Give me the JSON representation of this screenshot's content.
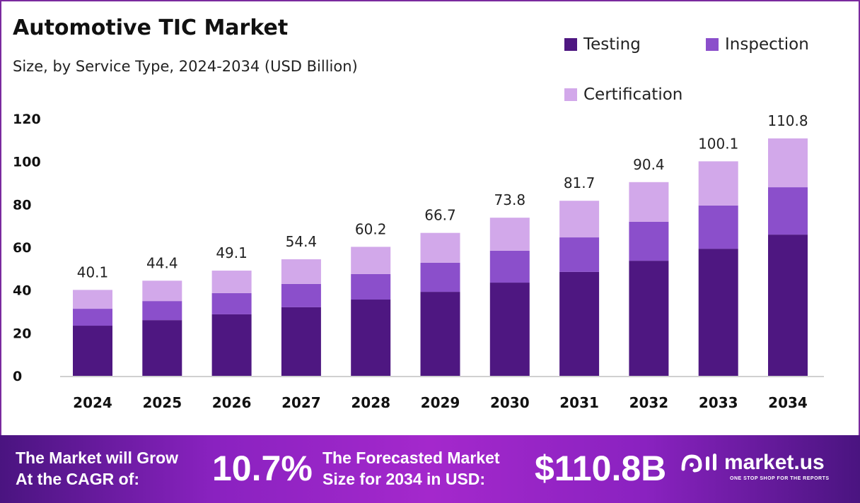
{
  "title": "Automotive TIC Market",
  "subtitle": "Size, by Service Type, 2024-2034 (USD Billion)",
  "chart_data": {
    "type": "stacked-bar",
    "categories": [
      "2024",
      "2025",
      "2026",
      "2027",
      "2028",
      "2029",
      "2030",
      "2031",
      "2032",
      "2033",
      "2034"
    ],
    "series": [
      {
        "name": "Testing",
        "color": "#4e1781",
        "values": [
          23.4,
          26.0,
          28.7,
          32.0,
          35.6,
          39.2,
          43.5,
          48.5,
          53.7,
          59.3,
          65.9
        ]
      },
      {
        "name": "Inspection",
        "color": "#8b4fcb",
        "values": [
          7.9,
          8.9,
          9.9,
          10.9,
          11.9,
          13.6,
          14.9,
          16.1,
          18.2,
          20.2,
          22.1
        ]
      },
      {
        "name": "Certification",
        "color": "#d2a8ea",
        "values": [
          8.8,
          9.5,
          10.5,
          11.5,
          12.7,
          13.9,
          15.4,
          17.1,
          18.5,
          20.6,
          22.8
        ]
      }
    ],
    "totals": [
      "40.1",
      "44.4",
      "49.1",
      "54.4",
      "60.2",
      "66.7",
      "73.8",
      "81.7",
      "90.4",
      "100.1",
      "110.8"
    ],
    "yticks": [
      "0",
      "20",
      "40",
      "60",
      "80",
      "100",
      "120"
    ],
    "ylim": [
      0,
      120
    ],
    "grid": false,
    "legend": "top-right"
  },
  "banner": {
    "cagr_text_1": "The Market will Grow",
    "cagr_text_2": "At the CAGR of:",
    "cagr_value": "10.7%",
    "forecast_text_1": "The Forecasted Market",
    "forecast_text_2": "Size for 2034 in USD:",
    "forecast_value": "$110.8B",
    "logo_name": "market.us",
    "logo_tagline": "ONE STOP SHOP FOR THE REPORTS"
  }
}
